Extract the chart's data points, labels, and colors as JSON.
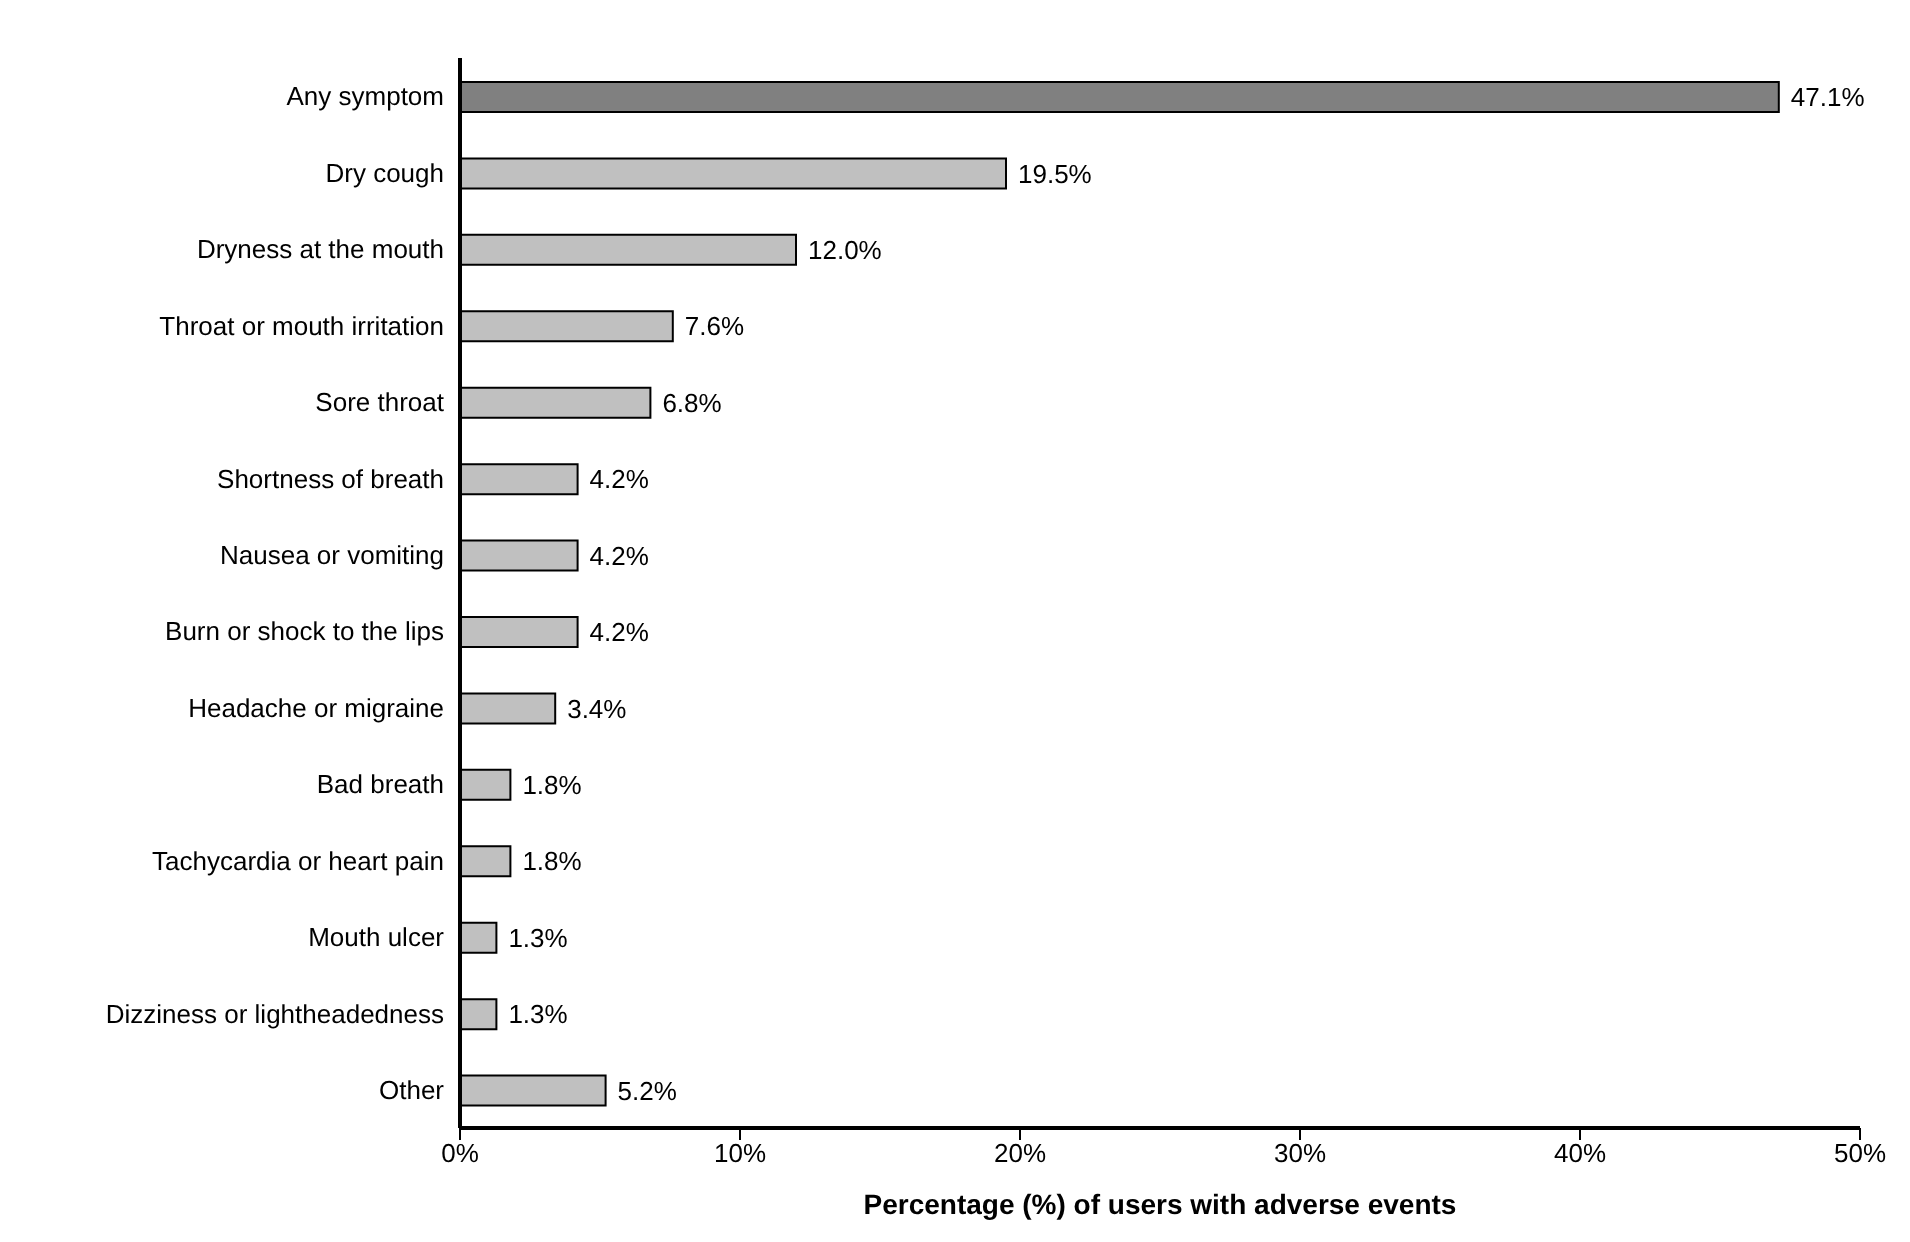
{
  "chart_data": {
    "type": "bar",
    "orientation": "horizontal",
    "xlabel": "Percentage (%)  of users with adverse events",
    "categories": [
      "Any symptom",
      "Dry cough",
      "Dryness at the mouth",
      "Throat or mouth irritation",
      "Sore throat",
      "Shortness of breath",
      "Nausea or vomiting",
      "Burn or shock to the lips",
      "Headache or migraine",
      "Bad breath",
      "Tachycardia or heart pain",
      "Mouth ulcer",
      "Dizziness or lightheadedness",
      "Other"
    ],
    "values": [
      47.1,
      19.5,
      12.0,
      7.6,
      6.8,
      4.2,
      4.2,
      4.2,
      3.4,
      1.8,
      1.8,
      1.3,
      1.3,
      5.2
    ],
    "value_labels": [
      "47.1%",
      "19.5%",
      "12.0%",
      "7.6%",
      "6.8%",
      "4.2%",
      "4.2%",
      "4.2%",
      "3.4%",
      "1.8%",
      "1.8%",
      "1.3%",
      "1.3%",
      "5.2%"
    ],
    "colors": [
      "#808080",
      "#c0c0c0",
      "#c0c0c0",
      "#c0c0c0",
      "#c0c0c0",
      "#c0c0c0",
      "#c0c0c0",
      "#c0c0c0",
      "#c0c0c0",
      "#c0c0c0",
      "#c0c0c0",
      "#c0c0c0",
      "#c0c0c0",
      "#c0c0c0"
    ],
    "xlim": [
      0,
      50
    ],
    "xticks": [
      {
        "value": 0,
        "label": "0%"
      },
      {
        "value": 10,
        "label": "10%"
      },
      {
        "value": 20,
        "label": "20%"
      },
      {
        "value": 30,
        "label": "30%"
      },
      {
        "value": 40,
        "label": "40%"
      },
      {
        "value": 50,
        "label": "50%"
      }
    ],
    "grid": false,
    "legend": false
  }
}
